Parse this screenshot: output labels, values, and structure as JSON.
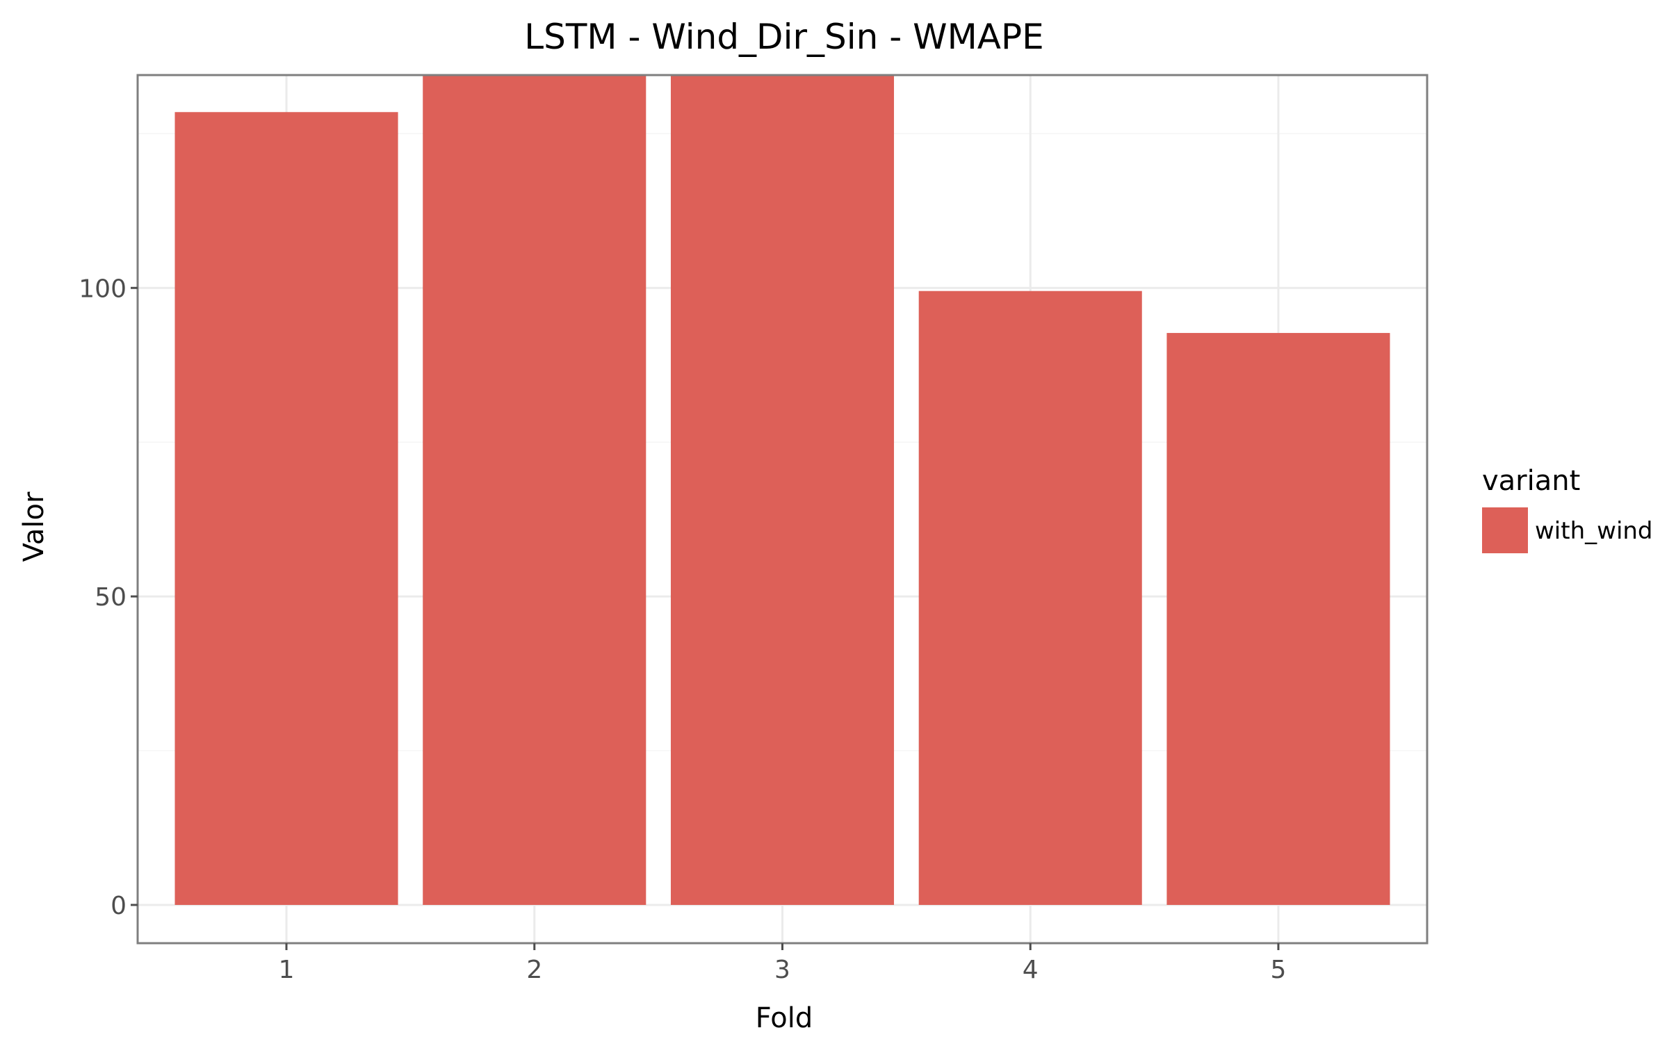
{
  "chart_data": {
    "type": "bar",
    "title": "LSTM - Wind_Dir_Sin - WMAPE",
    "xlabel": "Fold",
    "ylabel": "Valor",
    "categories": [
      "1",
      "2",
      "3",
      "4",
      "5"
    ],
    "series": [
      {
        "name": "with_wind",
        "values": [
          128.5,
          134.5,
          134.5,
          99.5,
          92.7
        ],
        "color": "#dd6058"
      }
    ],
    "ylim": [
      -6.2,
      134.5
    ],
    "yticks": [
      0,
      50,
      100
    ],
    "ytick_labels": [
      "0",
      "50",
      "100"
    ],
    "grid": true,
    "legend": {
      "title": "variant",
      "position": "right"
    },
    "colors": {
      "panel_border": "#7f7f7f",
      "grid_major": "#ebebeb",
      "grid_minor": "#f5f5f5",
      "tick": "#4d4d4d"
    }
  }
}
